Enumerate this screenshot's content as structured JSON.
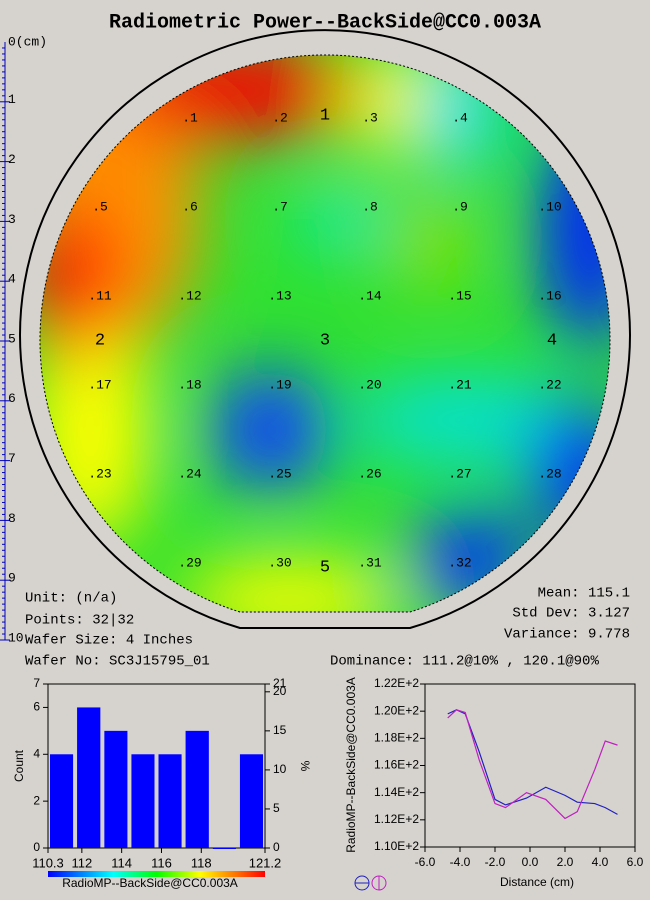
{
  "title": "Radiometric Power--BackSide@CC0.003A",
  "ruler": {
    "origin": "0(cm)",
    "ticks": [
      1,
      2,
      3,
      4,
      5,
      6,
      7,
      8,
      9,
      10
    ]
  },
  "sites": [
    ".1",
    ".2",
    ".3",
    ".4",
    ".5",
    ".6",
    ".7",
    ".8",
    ".9",
    ".10",
    ".11",
    ".12",
    ".13",
    ".14",
    ".15",
    ".16",
    ".17",
    ".18",
    ".19",
    ".20",
    ".21",
    ".22",
    ".23",
    ".24",
    ".25",
    ".26",
    ".27",
    ".28",
    ".29",
    ".30",
    ".31",
    ".32"
  ],
  "zones": [
    "1",
    "2",
    "3",
    "4",
    "5"
  ],
  "stats": {
    "unit": "Unit: (n/a)",
    "points": "Points: 32|32",
    "wafer_size": "Wafer Size: 4 Inches",
    "wafer_no": "Wafer No: SC3J15795_01",
    "mean": "Mean: 115.1",
    "std_dev": "Std Dev: 3.127",
    "variance": "Variance: 9.778",
    "dominance": "Dominance: 111.2@10% , 120.1@90%"
  },
  "histogram": {
    "type": "histogram",
    "ylabel": "Count",
    "y2label": "%",
    "xlabel": "RadioMP--BackSide@CC0.003A",
    "color": "#0000ff",
    "bins": [
      110.3,
      111.66,
      113.03,
      114.39,
      115.75,
      117.11,
      118.48,
      119.84,
      121.2
    ],
    "counts": [
      4,
      6,
      5,
      4,
      4,
      5,
      0,
      4
    ],
    "xlim": [
      110.3,
      121.2
    ],
    "xticks": [
      110.3,
      112,
      114,
      116,
      118,
      121.2
    ],
    "ylim": [
      0,
      7
    ],
    "yticks": [
      0,
      2,
      4,
      6,
      7
    ],
    "y2lim": [
      0,
      21
    ],
    "y2ticks": [
      0,
      5,
      10,
      15,
      20,
      21
    ]
  },
  "profile": {
    "type": "line",
    "xlabel": "Distance (cm)",
    "ylabel": "RadioMP--BackSide@CC0.003A",
    "x": [
      -4.7,
      -4.2,
      -3.7,
      -2.9,
      -2.0,
      -1.4,
      -0.2,
      0.9,
      2.0,
      2.7,
      3.7,
      4.3,
      5.0
    ],
    "series": [
      {
        "color": "#2020c0",
        "values": [
          119.8,
          120.1,
          119.8,
          117.0,
          113.5,
          113.1,
          113.6,
          114.4,
          113.8,
          113.3,
          113.2,
          112.9,
          112.4
        ]
      },
      {
        "color": "#c020c0",
        "values": [
          119.5,
          120.1,
          119.9,
          116.4,
          113.2,
          112.9,
          114.0,
          113.5,
          112.1,
          112.6,
          115.7,
          117.8,
          117.5
        ]
      }
    ],
    "xlim": [
      -6,
      6
    ],
    "xticks": [
      {
        "value": -6,
        "label": "-6.0"
      },
      {
        "value": -4,
        "label": "-4.0"
      },
      {
        "value": -2,
        "label": "-2.0"
      },
      {
        "value": 0,
        "label": "0.0"
      },
      {
        "value": 2,
        "label": "2.0"
      },
      {
        "value": 4,
        "label": "4.0"
      },
      {
        "value": 6,
        "label": "6.0"
      }
    ],
    "ylim": [
      110,
      122
    ],
    "yticks": [
      {
        "value": 110,
        "label": "1.10E+2"
      },
      {
        "value": 112,
        "label": "1.12E+2"
      },
      {
        "value": 114,
        "label": "1.14E+2"
      },
      {
        "value": 116,
        "label": "1.16E+2"
      },
      {
        "value": 118,
        "label": "1.18E+2"
      },
      {
        "value": 120,
        "label": "1.20E+2"
      },
      {
        "value": 122,
        "label": "1.22E+2"
      }
    ]
  }
}
